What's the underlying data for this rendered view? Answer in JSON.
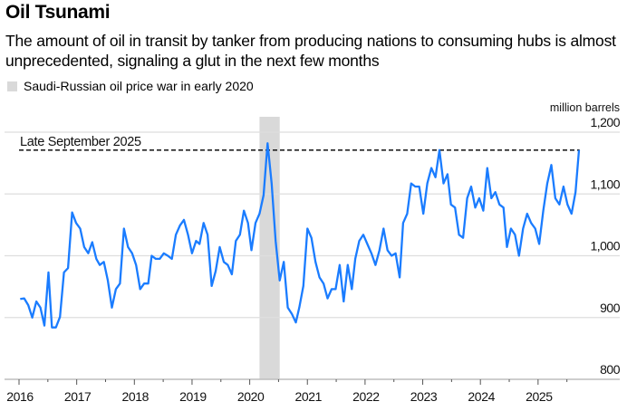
{
  "header": {
    "title": "Oil Tsunami",
    "subtitle": "The amount of oil in transit by tanker from producing nations to consuming hubs is almost unprecedented, signaling a glut in the next few months"
  },
  "chart_data": {
    "type": "line",
    "title": "Oil Tsunami",
    "ylabel": "million barrels",
    "xlabel": "",
    "ylim": [
      800,
      1200
    ],
    "xlim": [
      2016,
      2025.95
    ],
    "yticks": [
      800,
      900,
      1000,
      1100,
      1200
    ],
    "ytick_labels": [
      "800",
      "900",
      "1,000",
      "1,100",
      "1,200"
    ],
    "xticks": [
      2016,
      2017,
      2018,
      2019,
      2020,
      2021,
      2022,
      2023,
      2024,
      2025
    ],
    "xtick_labels": [
      "2016",
      "2017",
      "2018",
      "2019",
      "2020",
      "2021",
      "2022",
      "2023",
      "2024",
      "2025"
    ],
    "grid": "horizontal",
    "y_axis_side": "right",
    "line_color": "#1a7cff",
    "shaded_region": {
      "label": "Saudi-Russian oil price war in early 2020",
      "x": [
        2020.17,
        2020.52
      ],
      "color": "#d9d9d9"
    },
    "reference_line": {
      "label": "Late September 2025",
      "y": 1171,
      "style": "dashed"
    },
    "series": [
      {
        "points": [
          [
            2016.02,
            930
          ],
          [
            2016.09,
            931
          ],
          [
            2016.16,
            920
          ],
          [
            2016.23,
            900
          ],
          [
            2016.3,
            926
          ],
          [
            2016.37,
            916
          ],
          [
            2016.44,
            887
          ],
          [
            2016.51,
            973
          ],
          [
            2016.57,
            884
          ],
          [
            2016.64,
            884
          ],
          [
            2016.71,
            901
          ],
          [
            2016.78,
            973
          ],
          [
            2016.85,
            980
          ],
          [
            2016.92,
            1070
          ],
          [
            2016.99,
            1053
          ],
          [
            2017.06,
            1044
          ],
          [
            2017.13,
            1014
          ],
          [
            2017.2,
            1004
          ],
          [
            2017.27,
            1022
          ],
          [
            2017.34,
            995
          ],
          [
            2017.4,
            985
          ],
          [
            2017.47,
            990
          ],
          [
            2017.54,
            960
          ],
          [
            2017.61,
            916
          ],
          [
            2017.68,
            946
          ],
          [
            2017.75,
            955
          ],
          [
            2017.82,
            1044
          ],
          [
            2017.89,
            1014
          ],
          [
            2017.96,
            1004
          ],
          [
            2018.03,
            985
          ],
          [
            2018.1,
            946
          ],
          [
            2018.17,
            955
          ],
          [
            2018.24,
            955
          ],
          [
            2018.3,
            1000
          ],
          [
            2018.37,
            995
          ],
          [
            2018.44,
            995
          ],
          [
            2018.51,
            1004
          ],
          [
            2018.58,
            1000
          ],
          [
            2018.65,
            995
          ],
          [
            2018.72,
            1034
          ],
          [
            2018.79,
            1049
          ],
          [
            2018.86,
            1058
          ],
          [
            2018.93,
            1034
          ],
          [
            2019.0,
            1004
          ],
          [
            2019.07,
            1024
          ],
          [
            2019.13,
            1019
          ],
          [
            2019.2,
            1053
          ],
          [
            2019.27,
            1034
          ],
          [
            2019.34,
            951
          ],
          [
            2019.41,
            975
          ],
          [
            2019.48,
            1014
          ],
          [
            2019.55,
            990
          ],
          [
            2019.62,
            985
          ],
          [
            2019.69,
            970
          ],
          [
            2019.76,
            1024
          ],
          [
            2019.83,
            1034
          ],
          [
            2019.9,
            1073
          ],
          [
            2019.97,
            1053
          ],
          [
            2020.03,
            1009
          ],
          [
            2020.1,
            1053
          ],
          [
            2020.17,
            1068
          ],
          [
            2020.24,
            1098
          ],
          [
            2020.31,
            1182
          ],
          [
            2020.38,
            1117
          ],
          [
            2020.45,
            1024
          ],
          [
            2020.52,
            960
          ],
          [
            2020.59,
            990
          ],
          [
            2020.66,
            916
          ],
          [
            2020.73,
            906
          ],
          [
            2020.8,
            892
          ],
          [
            2020.86,
            916
          ],
          [
            2020.93,
            951
          ],
          [
            2021.0,
            1044
          ],
          [
            2021.07,
            1029
          ],
          [
            2021.14,
            990
          ],
          [
            2021.21,
            965
          ],
          [
            2021.28,
            955
          ],
          [
            2021.35,
            931
          ],
          [
            2021.42,
            946
          ],
          [
            2021.49,
            946
          ],
          [
            2021.56,
            985
          ],
          [
            2021.63,
            926
          ],
          [
            2021.7,
            985
          ],
          [
            2021.77,
            946
          ],
          [
            2021.83,
            995
          ],
          [
            2021.9,
            1024
          ],
          [
            2021.97,
            1034
          ],
          [
            2022.04,
            1019
          ],
          [
            2022.11,
            1004
          ],
          [
            2022.18,
            985
          ],
          [
            2022.25,
            1009
          ],
          [
            2022.32,
            1044
          ],
          [
            2022.39,
            1009
          ],
          [
            2022.46,
            1000
          ],
          [
            2022.53,
            1004
          ],
          [
            2022.6,
            965
          ],
          [
            2022.66,
            1053
          ],
          [
            2022.73,
            1068
          ],
          [
            2022.8,
            1117
          ],
          [
            2022.87,
            1112
          ],
          [
            2022.94,
            1112
          ],
          [
            2023.01,
            1068
          ],
          [
            2023.08,
            1117
          ],
          [
            2023.15,
            1142
          ],
          [
            2023.22,
            1127
          ],
          [
            2023.29,
            1171
          ],
          [
            2023.36,
            1117
          ],
          [
            2023.43,
            1132
          ],
          [
            2023.49,
            1083
          ],
          [
            2023.56,
            1078
          ],
          [
            2023.63,
            1034
          ],
          [
            2023.7,
            1029
          ],
          [
            2023.77,
            1093
          ],
          [
            2023.84,
            1112
          ],
          [
            2023.91,
            1078
          ],
          [
            2023.98,
            1093
          ],
          [
            2024.05,
            1073
          ],
          [
            2024.12,
            1142
          ],
          [
            2024.19,
            1093
          ],
          [
            2024.26,
            1103
          ],
          [
            2024.33,
            1083
          ],
          [
            2024.4,
            1078
          ],
          [
            2024.46,
            1014
          ],
          [
            2024.53,
            1044
          ],
          [
            2024.6,
            1034
          ],
          [
            2024.67,
            1000
          ],
          [
            2024.74,
            1044
          ],
          [
            2024.81,
            1068
          ],
          [
            2024.88,
            1053
          ],
          [
            2024.95,
            1044
          ],
          [
            2025.02,
            1019
          ],
          [
            2025.09,
            1073
          ],
          [
            2025.16,
            1117
          ],
          [
            2025.23,
            1147
          ],
          [
            2025.3,
            1093
          ],
          [
            2025.37,
            1083
          ],
          [
            2025.44,
            1112
          ],
          [
            2025.51,
            1083
          ],
          [
            2025.58,
            1068
          ],
          [
            2025.65,
            1103
          ],
          [
            2025.71,
            1171
          ]
        ]
      }
    ]
  }
}
